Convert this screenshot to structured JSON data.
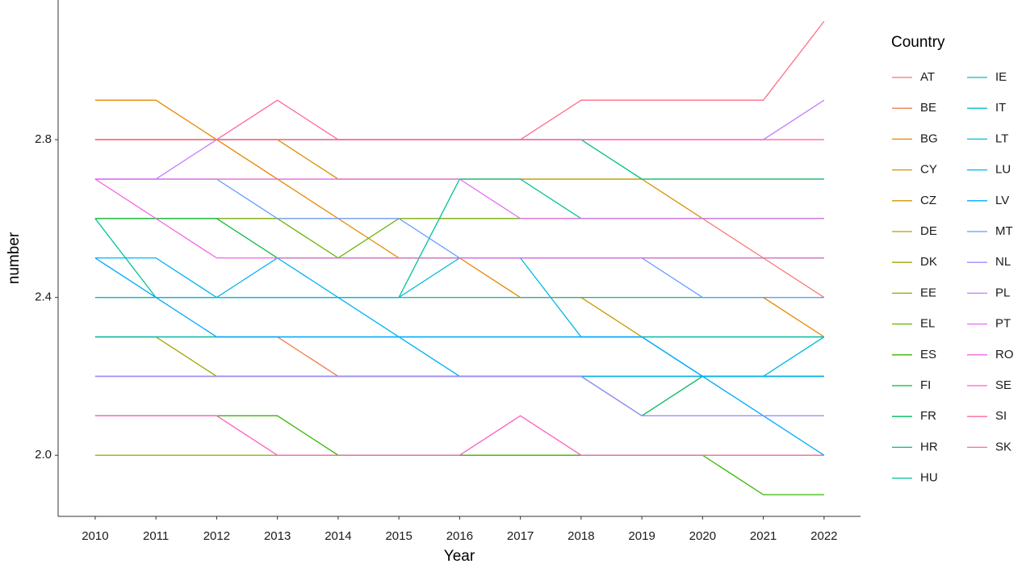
{
  "chart_data": {
    "type": "line",
    "x_label": "Year",
    "y_label": "number",
    "legend_title": "Country",
    "x": [
      2010,
      2011,
      2012,
      2013,
      2014,
      2015,
      2016,
      2017,
      2018,
      2019,
      2020,
      2021,
      2022
    ],
    "xlim": [
      2009.39,
      2022.6
    ],
    "xticks": [
      2010,
      2011,
      2012,
      2013,
      2014,
      2015,
      2016,
      2017,
      2018,
      2019,
      2020,
      2021,
      2022
    ],
    "ylim": [
      1.845,
      3.154
    ],
    "yticks": [
      {
        "value": 2,
        "label": "2.0"
      },
      2.4,
      2.8
    ],
    "grid": false,
    "legend_position": "right",
    "series": [
      {
        "name": "AT",
        "color": "#F8766D",
        "values": [
          2.6,
          2.6,
          2.6,
          2.6,
          2.6,
          2.6,
          2.6,
          2.6,
          2.6,
          2.6,
          2.6,
          2.5,
          2.4
        ]
      },
      {
        "name": "BE",
        "color": "#F07E4E",
        "values": [
          2.3,
          2.3,
          2.3,
          2.3,
          2.2,
          2.2,
          2.2,
          2.2,
          2.2,
          2.2,
          2.2,
          2.2,
          2.2
        ]
      },
      {
        "name": "BG",
        "color": "#E58700",
        "values": [
          2.9,
          2.9,
          2.8,
          2.7,
          2.6,
          2.5,
          2.5,
          2.4,
          2.4,
          2.4,
          2.4,
          2.4,
          2.3
        ]
      },
      {
        "name": "CY",
        "color": "#D89000",
        "values": [
          2.8,
          2.8,
          2.8,
          2.8,
          2.7,
          2.7,
          2.7,
          2.7,
          2.7,
          2.7,
          2.6,
          2.6,
          2.6
        ]
      },
      {
        "name": "CZ",
        "color": "#C99800",
        "values": [
          2.4,
          2.4,
          2.4,
          2.4,
          2.4,
          2.4,
          2.4,
          2.4,
          2.4,
          2.3,
          2.3,
          2.3,
          2.3
        ]
      },
      {
        "name": "DE",
        "color": "#B79F00",
        "values": [
          2.7,
          2.7,
          2.7,
          2.7,
          2.7,
          2.7,
          2.7,
          2.7,
          2.7,
          2.7,
          2.7,
          2.7,
          2.7
        ]
      },
      {
        "name": "DK",
        "color": "#A3A500",
        "values": [
          2.3,
          2.3,
          2.2,
          2.2,
          2.2,
          2.2,
          2.2,
          2.2,
          2.2,
          2.2,
          2.2,
          2.2,
          2.2
        ]
      },
      {
        "name": "EE",
        "color": "#8AAB00",
        "values": [
          2.0,
          2.0,
          2.0,
          2.0,
          2.0,
          2.0,
          2.0,
          2.0,
          2.0,
          2.0,
          2.0,
          2.0,
          2.0
        ]
      },
      {
        "name": "EL",
        "color": "#6BB100",
        "values": [
          2.6,
          2.6,
          2.6,
          2.6,
          2.5,
          2.6,
          2.6,
          2.6,
          2.6,
          2.6,
          2.6,
          2.6,
          2.6
        ]
      },
      {
        "name": "ES",
        "color": "#39B600",
        "values": [
          2.1,
          2.1,
          2.1,
          2.1,
          2.0,
          2.0,
          2.0,
          2.0,
          2.0,
          2.0,
          2.0,
          1.9,
          1.9
        ]
      },
      {
        "name": "FI",
        "color": "#00BA38",
        "values": [
          2.6,
          2.6,
          2.6,
          2.5,
          2.5,
          2.5,
          2.5,
          2.5,
          2.5,
          2.5,
          2.5,
          2.5,
          2.5
        ]
      },
      {
        "name": "FR",
        "color": "#00BD5C",
        "values": [
          2.2,
          2.2,
          2.2,
          2.2,
          2.2,
          2.2,
          2.2,
          2.2,
          2.2,
          2.1,
          2.2,
          2.2,
          2.2
        ]
      },
      {
        "name": "HR",
        "color": "#00BF7D",
        "values": [
          2.8,
          2.8,
          2.8,
          2.8,
          2.8,
          2.8,
          2.8,
          2.8,
          2.8,
          2.7,
          2.7,
          2.7,
          2.7
        ]
      },
      {
        "name": "HU",
        "color": "#00C19A",
        "values": [
          2.6,
          2.4,
          2.4,
          2.4,
          2.4,
          2.4,
          2.7,
          2.7,
          2.6,
          2.6,
          2.6,
          2.6,
          2.6
        ]
      },
      {
        "name": "IE",
        "color": "#00C0B5",
        "values": [
          2.3,
          2.3,
          2.3,
          2.3,
          2.3,
          2.3,
          2.3,
          2.3,
          2.3,
          2.3,
          2.3,
          2.3,
          2.3
        ]
      },
      {
        "name": "IT",
        "color": "#00BECC",
        "values": [
          2.4,
          2.4,
          2.4,
          2.4,
          2.4,
          2.4,
          2.4,
          2.4,
          2.4,
          2.4,
          2.4,
          2.4,
          2.4
        ]
      },
      {
        "name": "LT",
        "color": "#00BAE0",
        "values": [
          2.4,
          2.4,
          2.4,
          2.4,
          2.4,
          2.4,
          2.5,
          2.5,
          2.3,
          2.3,
          2.2,
          2.2,
          2.3
        ]
      },
      {
        "name": "LU",
        "color": "#00B2F3",
        "values": [
          2.5,
          2.5,
          2.4,
          2.5,
          2.4,
          2.3,
          2.2,
          2.2,
          2.2,
          2.2,
          2.2,
          2.2,
          2.2
        ]
      },
      {
        "name": "LV",
        "color": "#00A9FF",
        "values": [
          2.5,
          2.4,
          2.3,
          2.3,
          2.3,
          2.3,
          2.3,
          2.3,
          2.3,
          2.3,
          2.2,
          2.1,
          2.0
        ]
      },
      {
        "name": "MT",
        "color": "#619CFF",
        "values": [
          2.7,
          2.7,
          2.7,
          2.6,
          2.6,
          2.6,
          2.5,
          2.5,
          2.5,
          2.5,
          2.4,
          2.4,
          2.4
        ]
      },
      {
        "name": "NL",
        "color": "#9F8CFF",
        "values": [
          2.2,
          2.2,
          2.2,
          2.2,
          2.2,
          2.2,
          2.2,
          2.2,
          2.2,
          2.1,
          2.1,
          2.1,
          2.1
        ]
      },
      {
        "name": "PL",
        "color": "#C77CFF",
        "values": [
          2.7,
          2.7,
          2.8,
          2.8,
          2.8,
          2.8,
          2.8,
          2.8,
          2.8,
          2.8,
          2.8,
          2.8,
          2.9
        ]
      },
      {
        "name": "PT",
        "color": "#E56DF5",
        "values": [
          2.7,
          2.7,
          2.7,
          2.7,
          2.7,
          2.7,
          2.7,
          2.6,
          2.6,
          2.6,
          2.6,
          2.6,
          2.6
        ]
      },
      {
        "name": "RO",
        "color": "#F564E3",
        "values": [
          2.7,
          2.6,
          2.5,
          2.5,
          2.5,
          2.5,
          2.5,
          2.5,
          2.5,
          2.5,
          2.5,
          2.5,
          2.5
        ]
      },
      {
        "name": "SE",
        "color": "#FF61C3",
        "values": [
          2.1,
          2.1,
          2.1,
          2.0,
          2.0,
          2.0,
          2.0,
          2.1,
          2.0,
          2.0,
          2.0,
          2.0,
          2.0
        ]
      },
      {
        "name": "SI",
        "color": "#FF67A4",
        "values": [
          2.8,
          2.8,
          2.8,
          2.9,
          2.8,
          2.8,
          2.8,
          2.8,
          2.8,
          2.8,
          2.8,
          2.8,
          2.8
        ]
      },
      {
        "name": "SK",
        "color": "#FD6F87",
        "values": [
          2.8,
          2.8,
          2.8,
          2.8,
          2.8,
          2.8,
          2.8,
          2.8,
          2.9,
          2.9,
          2.9,
          2.9,
          3.1
        ]
      }
    ]
  }
}
